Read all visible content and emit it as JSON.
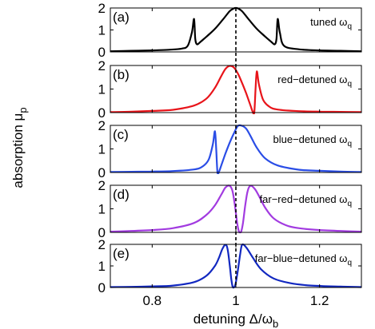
{
  "chart_data": {
    "type": "line",
    "xlabel": "detuning Δ/ω",
    "xlabel_sub": "b",
    "ylabel": "absorption μ",
    "ylabel_sub": "p",
    "xlim": [
      0.7,
      1.3
    ],
    "ylim": [
      0,
      2
    ],
    "x_ticks": [
      {
        "value": 0.8,
        "label": "0.8"
      },
      {
        "value": 1.0,
        "label": "1"
      },
      {
        "value": 1.2,
        "label": "1.2"
      }
    ],
    "y_ticks": [
      {
        "value": 0,
        "label": "0"
      },
      {
        "value": 1,
        "label": "1"
      },
      {
        "value": 2,
        "label": "2"
      }
    ],
    "reference_line": {
      "x": 1.0,
      "style": "dashed"
    },
    "panels": [
      {
        "tag": "(a)",
        "label": "tuned ω",
        "label_sub": "q",
        "color": "#000000",
        "x": [
          0.7,
          0.75,
          0.8,
          0.84,
          0.87,
          0.885,
          0.895,
          0.9,
          0.903,
          0.907,
          0.915,
          0.93,
          0.95,
          0.97,
          0.985,
          0.995,
          1.0,
          1.005,
          1.015,
          1.03,
          1.05,
          1.07,
          1.085,
          1.093,
          1.097,
          1.1,
          1.105,
          1.115,
          1.15,
          1.2,
          1.25,
          1.3
        ],
        "values": [
          0.03,
          0.05,
          0.07,
          0.1,
          0.15,
          0.28,
          0.9,
          1.5,
          0.6,
          0.35,
          0.45,
          0.7,
          1.05,
          1.5,
          1.85,
          1.98,
          2.0,
          1.98,
          1.85,
          1.5,
          1.05,
          0.7,
          0.45,
          0.35,
          0.6,
          1.5,
          0.9,
          0.28,
          0.12,
          0.07,
          0.05,
          0.03
        ]
      },
      {
        "tag": "(b)",
        "label": "red−detuned ω",
        "label_sub": "q",
        "color": "#e8141a",
        "x": [
          0.7,
          0.75,
          0.8,
          0.85,
          0.9,
          0.93,
          0.95,
          0.965,
          0.975,
          0.985,
          0.995,
          1.005,
          1.015,
          1.025,
          1.035,
          1.04,
          1.044,
          1.047,
          1.05,
          1.055,
          1.065,
          1.08,
          1.1,
          1.15,
          1.2,
          1.25,
          1.3
        ],
        "values": [
          0.02,
          0.04,
          0.07,
          0.12,
          0.3,
          0.6,
          1.05,
          1.55,
          1.85,
          1.98,
          1.92,
          1.65,
          1.25,
          0.8,
          0.3,
          0.05,
          0.0,
          1.0,
          1.75,
          1.2,
          0.55,
          0.25,
          0.13,
          0.06,
          0.04,
          0.03,
          0.02
        ]
      },
      {
        "tag": "(c)",
        "label": "blue−detuned ω",
        "label_sub": "q",
        "color": "#2a4de6",
        "x": [
          0.7,
          0.75,
          0.8,
          0.85,
          0.9,
          0.92,
          0.935,
          0.945,
          0.95,
          0.953,
          0.956,
          0.96,
          0.965,
          0.975,
          0.985,
          0.995,
          1.005,
          1.015,
          1.025,
          1.035,
          1.05,
          1.07,
          1.1,
          1.15,
          1.2,
          1.25,
          1.3
        ],
        "values": [
          0.02,
          0.03,
          0.04,
          0.06,
          0.13,
          0.25,
          0.55,
          1.2,
          1.75,
          1.0,
          0.0,
          0.05,
          0.3,
          0.8,
          1.25,
          1.65,
          1.98,
          1.98,
          1.85,
          1.55,
          1.05,
          0.6,
          0.3,
          0.12,
          0.07,
          0.04,
          0.02
        ]
      },
      {
        "tag": "(d)",
        "label": "far−red−detuned ω",
        "label_sub": "q",
        "color": "#a23be0",
        "x": [
          0.7,
          0.75,
          0.8,
          0.85,
          0.9,
          0.93,
          0.95,
          0.965,
          0.975,
          0.985,
          0.992,
          0.998,
          1.003,
          1.007,
          1.01,
          1.013,
          1.017,
          1.022,
          1.028,
          1.035,
          1.045,
          1.055,
          1.07,
          1.09,
          1.12,
          1.15,
          1.2,
          1.25,
          1.3
        ],
        "values": [
          0.03,
          0.06,
          0.1,
          0.18,
          0.4,
          0.75,
          1.15,
          1.6,
          1.9,
          1.98,
          1.75,
          1.1,
          0.4,
          0.05,
          0.0,
          0.05,
          0.4,
          1.1,
          1.75,
          1.98,
          1.85,
          1.55,
          1.05,
          0.6,
          0.3,
          0.18,
          0.1,
          0.06,
          0.03
        ]
      },
      {
        "tag": "(e)",
        "label": "far−blue−detuned ω",
        "label_sub": "q",
        "color": "#1228c0",
        "x": [
          0.7,
          0.75,
          0.8,
          0.85,
          0.9,
          0.93,
          0.95,
          0.96,
          0.968,
          0.975,
          0.98,
          0.985,
          0.989,
          0.992,
          0.995,
          0.999,
          1.004,
          1.01,
          1.015,
          1.025,
          1.04,
          1.06,
          1.09,
          1.13,
          1.18,
          1.25,
          1.3
        ],
        "values": [
          0.02,
          0.03,
          0.05,
          0.09,
          0.25,
          0.55,
          1.0,
          1.4,
          1.8,
          1.98,
          1.8,
          1.1,
          0.4,
          0.05,
          0.0,
          0.15,
          0.7,
          1.5,
          1.98,
          1.85,
          1.4,
          0.85,
          0.42,
          0.2,
          0.09,
          0.04,
          0.02
        ]
      }
    ]
  }
}
